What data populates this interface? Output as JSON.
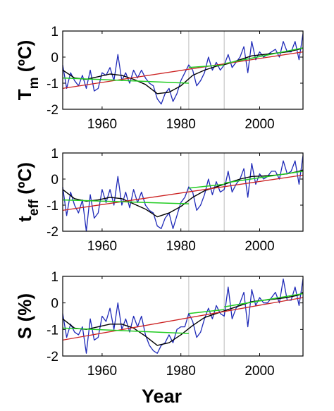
{
  "chart_data": [
    {
      "type": "line",
      "ylabel": {
        "main": "T",
        "sub": "m",
        "tail": " (ºC)"
      },
      "xlim": [
        1950,
        2011
      ],
      "ylim": [
        -2,
        1
      ],
      "xticks": [
        "1960",
        "1980",
        "2000"
      ],
      "yticks": [
        "-2",
        "-1",
        "0",
        "1"
      ],
      "vlines": [
        1982,
        1991
      ],
      "colors": {
        "observed": "#1f2ab8",
        "smooth": "#000000",
        "trend": "#cc2222",
        "segment": "#22cc22",
        "vline": "#c8c8c8"
      },
      "series": [
        {
          "key": "observed",
          "x": [
            1950,
            1951,
            1952,
            1953,
            1954,
            1955,
            1956,
            1957,
            1958,
            1959,
            1960,
            1961,
            1962,
            1963,
            1964,
            1965,
            1966,
            1967,
            1968,
            1969,
            1970,
            1971,
            1972,
            1973,
            1974,
            1975,
            1976,
            1977,
            1978,
            1979,
            1980,
            1981,
            1982,
            1983,
            1984,
            1985,
            1986,
            1987,
            1988,
            1989,
            1990,
            1991,
            1992,
            1993,
            1994,
            1995,
            1996,
            1997,
            1998,
            1999,
            2000,
            2001,
            2002,
            2003,
            2004,
            2005,
            2006,
            2007,
            2008,
            2009,
            2010,
            2011
          ],
          "values": [
            -0.3,
            -1.2,
            -0.6,
            -0.9,
            -1.1,
            -0.7,
            -1.2,
            -0.5,
            -1.3,
            -1.2,
            -0.6,
            -0.7,
            -0.4,
            -0.9,
            0.1,
            -0.9,
            -0.6,
            -1.0,
            -0.5,
            -0.8,
            -0.5,
            -0.8,
            -1.0,
            -1.1,
            -1.6,
            -1.8,
            -1.4,
            -1.2,
            -1.7,
            -1.4,
            -0.9,
            -0.6,
            -0.3,
            -0.5,
            -1.1,
            -0.9,
            -0.6,
            0.0,
            -0.5,
            -0.2,
            -0.5,
            -0.3,
            0.1,
            -0.4,
            -0.2,
            0.0,
            0.4,
            -0.6,
            0.6,
            -0.1,
            0.2,
            0.0,
            0.1,
            0.2,
            0.3,
            0.0,
            0.6,
            0.2,
            0.2,
            0.6,
            -0.1,
            0.9
          ]
        },
        {
          "key": "smooth",
          "x": [
            1950,
            1953,
            1956,
            1959,
            1962,
            1965,
            1968,
            1971,
            1974,
            1977,
            1980,
            1983,
            1986,
            1989,
            1992,
            1995,
            1998,
            2001,
            2004,
            2007,
            2010,
            2011
          ],
          "values": [
            -0.5,
            -0.8,
            -0.85,
            -0.75,
            -0.65,
            -0.7,
            -0.85,
            -1.05,
            -1.4,
            -1.35,
            -1.1,
            -0.7,
            -0.5,
            -0.35,
            -0.25,
            -0.1,
            0.05,
            0.1,
            0.15,
            0.2,
            0.3,
            0.35
          ]
        },
        {
          "key": "trend",
          "x": [
            1950,
            2011
          ],
          "values": [
            -1.2,
            0.2
          ]
        },
        {
          "key": "segment",
          "x": [
            1950,
            1982
          ],
          "values": [
            -0.8,
            -1.0
          ]
        },
        {
          "key": "segment",
          "x": [
            1982,
            1991
          ],
          "values": [
            -0.4,
            -0.3
          ]
        },
        {
          "key": "segment",
          "x": [
            1991,
            2011
          ],
          "values": [
            -0.25,
            0.35
          ]
        }
      ]
    },
    {
      "type": "line",
      "ylabel": {
        "main": "t",
        "sub": "eff",
        "tail": " (ºC)"
      },
      "xlim": [
        1950,
        2011
      ],
      "ylim": [
        -2,
        1
      ],
      "xticks": [
        "1960",
        "1980",
        "2000"
      ],
      "yticks": [
        "-2",
        "-1",
        "0",
        "1"
      ],
      "vlines": [
        1982,
        1991
      ],
      "colors": {
        "observed": "#1f2ab8",
        "smooth": "#000000",
        "trend": "#cc2222",
        "segment": "#22cc22",
        "vline": "#c8c8c8"
      },
      "series": [
        {
          "key": "observed",
          "x": [
            1950,
            1951,
            1952,
            1953,
            1954,
            1955,
            1956,
            1957,
            1958,
            1959,
            1960,
            1961,
            1962,
            1963,
            1964,
            1965,
            1966,
            1967,
            1968,
            1969,
            1970,
            1971,
            1972,
            1973,
            1974,
            1975,
            1976,
            1977,
            1978,
            1979,
            1980,
            1981,
            1982,
            1983,
            1984,
            1985,
            1986,
            1987,
            1988,
            1989,
            1990,
            1991,
            1992,
            1993,
            1994,
            1995,
            1996,
            1997,
            1998,
            1999,
            2000,
            2001,
            2002,
            2003,
            2004,
            2005,
            2006,
            2007,
            2008,
            2009,
            2010,
            2011
          ],
          "values": [
            -0.3,
            -1.4,
            -0.5,
            -1.0,
            -1.3,
            -0.8,
            -2.0,
            -0.6,
            -1.5,
            -1.3,
            -0.4,
            -0.9,
            -0.4,
            -1.0,
            0.1,
            -1.0,
            -0.5,
            -1.1,
            -0.4,
            -0.9,
            -0.5,
            -1.0,
            -1.2,
            -1.3,
            -1.8,
            -1.9,
            -1.5,
            -1.3,
            -1.9,
            -1.4,
            -0.9,
            -0.7,
            -0.3,
            -0.5,
            -1.2,
            -1.0,
            -0.6,
            0.0,
            -0.6,
            -0.1,
            -0.5,
            -0.4,
            0.3,
            -0.5,
            -0.2,
            0.0,
            0.4,
            -0.7,
            0.6,
            -0.2,
            0.2,
            0.0,
            0.1,
            0.3,
            0.3,
            0.0,
            0.7,
            0.2,
            0.3,
            0.7,
            -0.2,
            0.9
          ]
        },
        {
          "key": "smooth",
          "x": [
            1950,
            1953,
            1956,
            1959,
            1962,
            1965,
            1968,
            1971,
            1974,
            1977,
            1980,
            1983,
            1986,
            1989,
            1992,
            1995,
            1998,
            2001,
            2004,
            2007,
            2010,
            2011
          ],
          "values": [
            -0.4,
            -0.75,
            -0.85,
            -0.8,
            -0.7,
            -0.75,
            -0.95,
            -1.15,
            -1.45,
            -1.3,
            -1.05,
            -0.7,
            -0.45,
            -0.3,
            -0.15,
            0.0,
            0.1,
            0.12,
            0.15,
            0.2,
            0.3,
            0.35
          ]
        },
        {
          "key": "trend",
          "x": [
            1950,
            2011
          ],
          "values": [
            -1.2,
            0.15
          ]
        },
        {
          "key": "segment",
          "x": [
            1950,
            1982
          ],
          "values": [
            -0.8,
            -0.95
          ]
        },
        {
          "key": "segment",
          "x": [
            1982,
            1991
          ],
          "values": [
            -0.35,
            -0.2
          ]
        },
        {
          "key": "segment",
          "x": [
            1991,
            2011
          ],
          "values": [
            -0.15,
            0.3
          ]
        }
      ]
    },
    {
      "type": "line",
      "ylabel": {
        "main": "S (%)",
        "sub": "",
        "tail": ""
      },
      "xlabel": "Year",
      "xlim": [
        1950,
        2011
      ],
      "ylim": [
        -2,
        1
      ],
      "xticks": [
        "1960",
        "1980",
        "2000"
      ],
      "yticks": [
        "-2",
        "-1",
        "0",
        "1"
      ],
      "vlines": [
        1982,
        1991
      ],
      "colors": {
        "observed": "#1f2ab8",
        "smooth": "#000000",
        "trend": "#cc2222",
        "segment": "#22cc22",
        "vline": "#c8c8c8"
      },
      "series": [
        {
          "key": "observed",
          "x": [
            1950,
            1951,
            1952,
            1953,
            1954,
            1955,
            1956,
            1957,
            1958,
            1959,
            1960,
            1961,
            1962,
            1963,
            1964,
            1965,
            1966,
            1967,
            1968,
            1969,
            1970,
            1971,
            1972,
            1973,
            1974,
            1975,
            1976,
            1977,
            1978,
            1979,
            1980,
            1981,
            1982,
            1983,
            1984,
            1985,
            1986,
            1987,
            1988,
            1989,
            1990,
            1991,
            1992,
            1993,
            1994,
            1995,
            1996,
            1997,
            1998,
            1999,
            2000,
            2001,
            2002,
            2003,
            2004,
            2005,
            2006,
            2007,
            2008,
            2009,
            2010,
            2011
          ],
          "values": [
            -0.4,
            -1.3,
            -0.8,
            -1.1,
            -1.2,
            -0.9,
            -1.9,
            -0.6,
            -1.4,
            -1.3,
            -0.5,
            -0.7,
            -0.2,
            -1.0,
            0.0,
            -1.0,
            -0.6,
            -1.1,
            -0.5,
            -0.9,
            -0.5,
            -1.2,
            -1.6,
            -1.8,
            -1.9,
            -1.6,
            -1.5,
            -1.2,
            -1.5,
            -1.0,
            -0.9,
            -0.9,
            -0.4,
            -0.7,
            -1.3,
            -1.1,
            -0.6,
            -0.2,
            -0.6,
            -0.1,
            -0.4,
            -0.5,
            0.6,
            -0.6,
            -0.2,
            0.0,
            0.4,
            -0.9,
            0.5,
            -0.1,
            0.2,
            0.0,
            0.0,
            0.2,
            0.4,
            0.0,
            0.9,
            0.1,
            0.1,
            0.6,
            -0.1,
            0.9
          ]
        },
        {
          "key": "smooth",
          "x": [
            1950,
            1953,
            1956,
            1959,
            1962,
            1965,
            1968,
            1971,
            1974,
            1977,
            1980,
            1983,
            1986,
            1989,
            1992,
            1995,
            1998,
            2001,
            2004,
            2007,
            2010,
            2011
          ],
          "values": [
            -0.6,
            -0.95,
            -1.0,
            -0.9,
            -0.8,
            -0.8,
            -0.95,
            -1.25,
            -1.6,
            -1.5,
            -1.2,
            -0.85,
            -0.55,
            -0.4,
            -0.25,
            -0.1,
            0.05,
            0.1,
            0.15,
            0.2,
            0.3,
            0.4
          ]
        },
        {
          "key": "trend",
          "x": [
            1950,
            2011
          ],
          "values": [
            -1.4,
            0.2
          ]
        },
        {
          "key": "segment",
          "x": [
            1950,
            1982
          ],
          "values": [
            -0.95,
            -1.15
          ]
        },
        {
          "key": "segment",
          "x": [
            1982,
            1991
          ],
          "values": [
            -0.4,
            -0.25
          ]
        },
        {
          "key": "segment",
          "x": [
            1991,
            2011
          ],
          "values": [
            -0.15,
            0.35
          ]
        }
      ]
    }
  ]
}
